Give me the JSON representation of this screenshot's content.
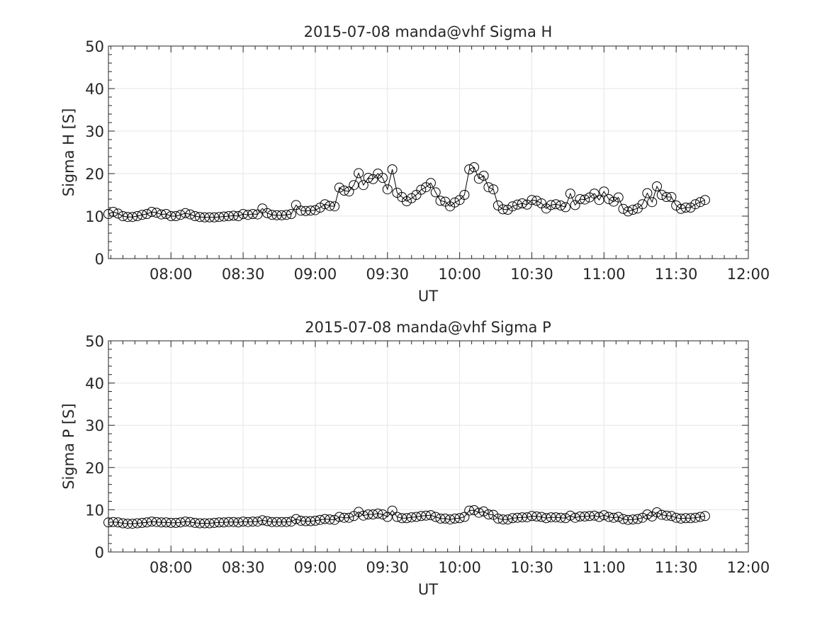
{
  "chart_data": [
    {
      "type": "line",
      "title": "2015-07-08  manda@vhf Sigma H",
      "xlabel": "UT",
      "ylabel": "Sigma H [S]",
      "xlim": [
        "07:34",
        "12:00"
      ],
      "ylim": [
        0,
        50
      ],
      "grid": true,
      "x_tick_labels": [
        "08:00",
        "08:30",
        "09:00",
        "09:30",
        "10:00",
        "10:30",
        "11:00",
        "11:30",
        "12:00"
      ],
      "y_tick_labels": [
        "0",
        "10",
        "20",
        "30",
        "40",
        "50"
      ],
      "series": [
        {
          "marker": "circle",
          "x_start": "07:34",
          "x_step_minutes": 2,
          "values": [
            10.5,
            11.0,
            10.6,
            10.0,
            9.8,
            9.8,
            10.0,
            10.3,
            10.5,
            11.0,
            10.8,
            10.4,
            10.5,
            10.0,
            10.0,
            10.3,
            10.7,
            10.4,
            10.0,
            9.8,
            9.7,
            9.7,
            9.7,
            9.8,
            9.9,
            10.0,
            10.1,
            10.0,
            10.5,
            10.3,
            10.5,
            10.4,
            11.8,
            10.7,
            10.3,
            10.2,
            10.2,
            10.3,
            10.5,
            12.6,
            11.3,
            11.2,
            11.3,
            11.4,
            12.0,
            12.8,
            12.4,
            12.3,
            16.7,
            16.0,
            15.8,
            17.3,
            20.1,
            17.3,
            19.0,
            18.7,
            20.0,
            19.0,
            16.3,
            21.0,
            15.5,
            14.5,
            13.5,
            14.2,
            15.0,
            16.2,
            16.8,
            17.8,
            15.6,
            13.6,
            13.4,
            12.3,
            13.2,
            13.8,
            15.0,
            21.0,
            21.5,
            18.8,
            19.5,
            16.8,
            16.3,
            12.5,
            11.6,
            11.5,
            12.3,
            12.7,
            13.0,
            12.7,
            13.8,
            13.6,
            13.0,
            11.8,
            12.6,
            12.8,
            12.5,
            12.1,
            15.3,
            12.6,
            14.0,
            13.9,
            14.4,
            15.3,
            13.8,
            15.8,
            14.0,
            13.4,
            14.4,
            11.7,
            11.1,
            11.5,
            11.8,
            12.8,
            15.4,
            13.3,
            17.0,
            15.0,
            14.5,
            14.5,
            12.5,
            11.7,
            12.0,
            12.0,
            12.8,
            13.3,
            13.8
          ]
        }
      ]
    },
    {
      "type": "line",
      "title": "2015-07-08  manda@vhf Sigma P",
      "xlabel": "UT",
      "ylabel": "Sigma P [S]",
      "xlim": [
        "07:34",
        "12:00"
      ],
      "ylim": [
        0,
        50
      ],
      "grid": true,
      "x_tick_labels": [
        "08:00",
        "08:30",
        "09:00",
        "09:30",
        "10:00",
        "10:30",
        "11:00",
        "11:30",
        "12:00"
      ],
      "y_tick_labels": [
        "0",
        "10",
        "20",
        "30",
        "40",
        "50"
      ],
      "series": [
        {
          "marker": "circle",
          "x_start": "07:34",
          "x_step_minutes": 2,
          "values": [
            7.0,
            7.1,
            7.0,
            6.8,
            6.7,
            6.7,
            6.8,
            6.9,
            7.0,
            7.2,
            7.1,
            7.0,
            7.0,
            6.9,
            6.9,
            7.0,
            7.2,
            7.1,
            6.9,
            6.8,
            6.8,
            6.8,
            6.9,
            7.0,
            7.0,
            7.1,
            7.1,
            7.0,
            7.2,
            7.1,
            7.2,
            7.2,
            7.5,
            7.3,
            7.1,
            7.1,
            7.1,
            7.1,
            7.2,
            7.8,
            7.4,
            7.3,
            7.3,
            7.4,
            7.6,
            7.8,
            7.7,
            7.6,
            8.3,
            8.1,
            8.1,
            8.5,
            9.5,
            8.6,
            8.9,
            8.9,
            9.1,
            8.9,
            8.3,
            9.8,
            8.3,
            8.0,
            8.0,
            8.2,
            8.3,
            8.5,
            8.6,
            8.7,
            8.3,
            7.9,
            7.9,
            7.7,
            7.9,
            8.0,
            8.3,
            9.8,
            9.9,
            9.3,
            9.6,
            8.9,
            8.8,
            7.9,
            7.7,
            7.7,
            8.0,
            8.1,
            8.2,
            8.2,
            8.5,
            8.4,
            8.3,
            8.0,
            8.2,
            8.2,
            8.1,
            8.0,
            8.6,
            8.1,
            8.4,
            8.4,
            8.5,
            8.6,
            8.3,
            8.7,
            8.3,
            8.1,
            8.3,
            7.8,
            7.6,
            7.7,
            7.8,
            8.1,
            8.9,
            8.4,
            9.4,
            8.8,
            8.6,
            8.5,
            8.1,
            7.9,
            8.0,
            8.0,
            8.1,
            8.3,
            8.5
          ]
        }
      ]
    }
  ]
}
